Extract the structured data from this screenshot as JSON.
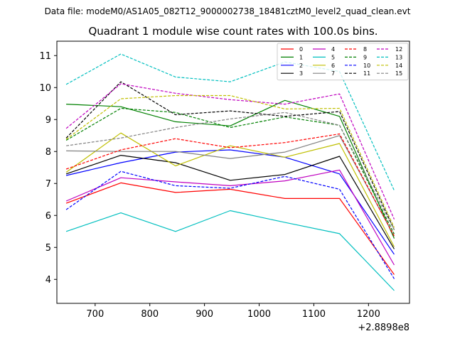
{
  "suptitle": "Data file: modeM0/AS1A05_082T12_9000002738_18481cztM0_level2_quad_clean.evt",
  "chart_data": {
    "type": "line",
    "title": "Quadrant 1 module wise count rates with 100.0s bins.",
    "xlabel": "",
    "ylabel": "",
    "x_offset_label": "+2.8898e8",
    "x": [
      647,
      747,
      847,
      947,
      1047,
      1147,
      1247
    ],
    "xlim": [
      630,
      1275
    ],
    "ylim": [
      3.25,
      11.45
    ],
    "xticks": [
      700,
      800,
      900,
      1000,
      1100,
      1200
    ],
    "yticks": [
      4,
      5,
      6,
      7,
      8,
      9,
      10,
      11
    ],
    "legend_location": "upper-right",
    "legend_columns": 4,
    "series": [
      {
        "name": "0",
        "color": "#ff0000",
        "dash": "solid",
        "values": [
          6.38,
          7.02,
          6.72,
          6.82,
          6.53,
          6.53,
          4.15
        ]
      },
      {
        "name": "1",
        "color": "#008000",
        "dash": "solid",
        "values": [
          9.48,
          9.4,
          8.93,
          8.8,
          9.6,
          9.1,
          5.28
        ]
      },
      {
        "name": "2",
        "color": "#0000ff",
        "dash": "solid",
        "values": [
          7.25,
          7.65,
          7.98,
          8.05,
          7.82,
          7.3,
          4.78
        ]
      },
      {
        "name": "3",
        "color": "#000000",
        "dash": "solid",
        "values": [
          7.3,
          7.88,
          7.65,
          7.1,
          7.28,
          7.85,
          4.95
        ]
      },
      {
        "name": "4",
        "color": "#bf00bf",
        "dash": "solid",
        "values": [
          6.45,
          7.18,
          7.05,
          6.93,
          7.08,
          7.42,
          4.45
        ]
      },
      {
        "name": "5",
        "color": "#00bfbf",
        "dash": "solid",
        "values": [
          5.5,
          6.08,
          5.5,
          6.15,
          5.78,
          5.43,
          3.65
        ]
      },
      {
        "name": "6",
        "color": "#bfbf00",
        "dash": "solid",
        "values": [
          7.35,
          8.58,
          7.55,
          8.18,
          7.82,
          8.25,
          5.02
        ]
      },
      {
        "name": "7",
        "color": "#808080",
        "dash": "solid",
        "values": [
          8.02,
          8.0,
          8.0,
          7.78,
          7.98,
          8.5,
          5.35
        ]
      },
      {
        "name": "8",
        "color": "#ff0000",
        "dash": "dashed",
        "values": [
          7.45,
          8.05,
          8.4,
          8.12,
          8.28,
          8.55,
          5.35
        ]
      },
      {
        "name": "9",
        "color": "#008000",
        "dash": "dashed",
        "values": [
          8.35,
          9.35,
          9.22,
          8.75,
          9.08,
          8.82,
          5.42
        ]
      },
      {
        "name": "10",
        "color": "#0000ff",
        "dash": "dashed",
        "values": [
          6.18,
          7.38,
          6.93,
          6.85,
          7.22,
          6.82,
          4.02
        ]
      },
      {
        "name": "11",
        "color": "#000000",
        "dash": "dashed",
        "values": [
          8.42,
          10.18,
          9.15,
          9.27,
          9.1,
          9.25,
          5.55
        ]
      },
      {
        "name": "12",
        "color": "#bf00bf",
        "dash": "dashed",
        "values": [
          8.72,
          10.12,
          9.82,
          9.62,
          9.48,
          9.8,
          5.88
        ]
      },
      {
        "name": "13",
        "color": "#00bfbf",
        "dash": "dashed",
        "values": [
          10.1,
          11.05,
          10.33,
          10.18,
          10.8,
          10.5,
          6.78
        ]
      },
      {
        "name": "14",
        "color": "#bfbf00",
        "dash": "dashed",
        "values": [
          8.38,
          9.65,
          9.75,
          9.75,
          9.33,
          9.35,
          5.62
        ]
      },
      {
        "name": "15",
        "color": "#808080",
        "dash": "dashed",
        "values": [
          8.18,
          8.42,
          8.75,
          9.02,
          9.22,
          8.82,
          5.55
        ]
      }
    ]
  }
}
